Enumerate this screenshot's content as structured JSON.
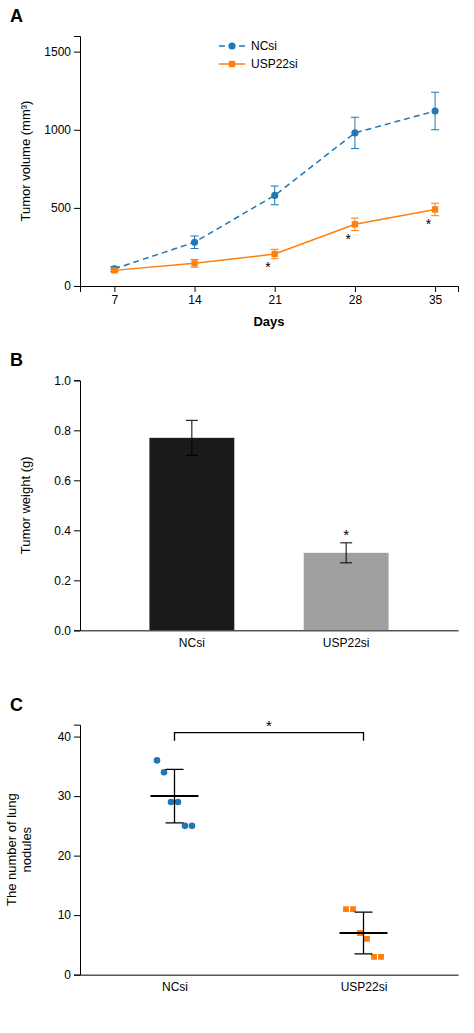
{
  "chart_data": [
    {
      "type": "line",
      "title": "A",
      "xlabel": "Days",
      "ylabel": "Tumor volume (mm³)",
      "x": [
        7,
        14,
        21,
        28,
        35
      ],
      "xlim": [
        4,
        37
      ],
      "xticks": [
        7,
        14,
        21,
        28,
        35
      ],
      "ylim": [
        0,
        1600
      ],
      "yticks": [
        0,
        500,
        1000,
        1500
      ],
      "series": [
        {
          "name": "NCsi",
          "marker": "circle",
          "line_style": "dashed",
          "values": [
            110,
            280,
            580,
            980,
            1120
          ],
          "errors": [
            15,
            40,
            60,
            100,
            120
          ]
        },
        {
          "name": "USP22si",
          "marker": "square",
          "line_style": "solid",
          "values": [
            100,
            145,
            205,
            395,
            490
          ],
          "errors": [
            10,
            25,
            30,
            40,
            40
          ]
        }
      ],
      "legend": "upper center",
      "annotations": [
        {
          "text": "*",
          "x": 21,
          "series": "USP22si"
        },
        {
          "text": "*",
          "x": 28,
          "series": "USP22si"
        },
        {
          "text": "*",
          "x": 35,
          "series": "USP22si"
        }
      ]
    },
    {
      "type": "bar",
      "title": "B",
      "ylabel": "Tumor weight (g)",
      "categories": [
        "NCsi",
        "USP22si"
      ],
      "values": [
        0.77,
        0.31
      ],
      "errors": [
        0.07,
        0.04
      ],
      "colors": [
        "#1a1a1a",
        "#a0a0a0"
      ],
      "ylim": [
        0,
        1.0
      ],
      "yticks": [
        {
          "value": 0,
          "label": "0.0"
        },
        0.2,
        0.4,
        0.6,
        0.8,
        {
          "value": 1,
          "label": "1.0"
        }
      ],
      "annotations": [
        {
          "text": "*",
          "x": "USP22si"
        }
      ]
    },
    {
      "type": "dot",
      "title": "C",
      "ylabel": "The number of lung\nnodules",
      "ylim": [
        0,
        42
      ],
      "yticks": [
        0,
        10,
        20,
        30,
        40
      ],
      "series": [
        {
          "name": "NCsi",
          "marker": "circle",
          "values": [
            36,
            34,
            29,
            29,
            25,
            25
          ],
          "mean": 30,
          "error": 4.5
        },
        {
          "name": "USP22si",
          "marker": "square",
          "values": [
            11,
            11,
            7,
            6,
            3,
            3
          ],
          "mean": 7,
          "error": 3.5
        }
      ],
      "annotations": [
        {
          "text": "*",
          "between": [
            "NCsi",
            "USP22si"
          ]
        }
      ]
    }
  ]
}
